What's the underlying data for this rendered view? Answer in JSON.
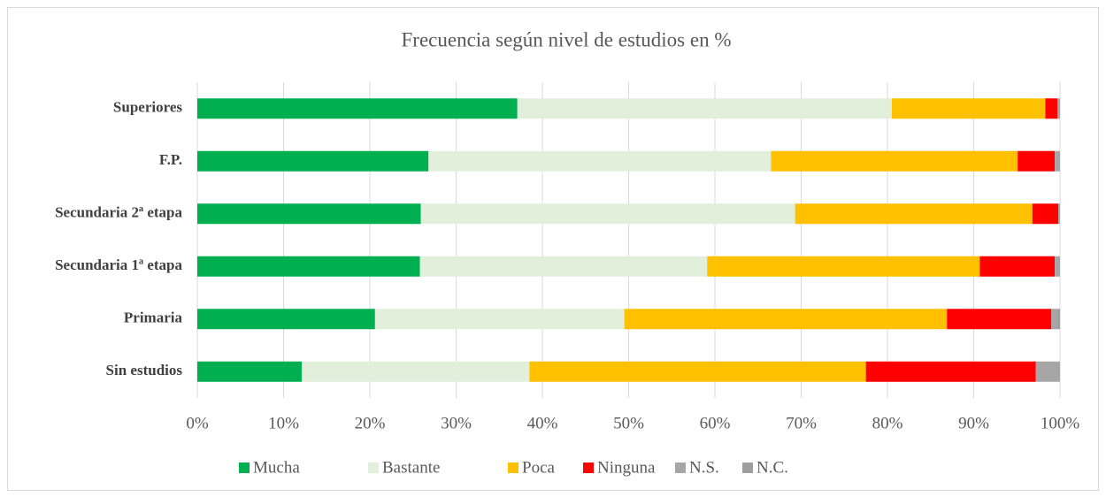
{
  "chart_data": {
    "type": "bar",
    "orientation": "horizontal",
    "stacked": true,
    "title": "Frecuencia según nivel de estudios en %",
    "categories": [
      "Superiores",
      "F.P.",
      "Secundaria 2ª etapa",
      "Secundaria 1ª etapa",
      "Primaria",
      "Sin estudios"
    ],
    "series": [
      {
        "name": "Mucha",
        "color": "#00b050",
        "values": [
          37.1,
          26.8,
          25.9,
          25.8,
          20.6,
          12.1
        ]
      },
      {
        "name": "Bastante",
        "color": "#e2efda",
        "values": [
          43.4,
          39.7,
          43.4,
          33.3,
          28.9,
          26.4
        ]
      },
      {
        "name": "Poca",
        "color": "#ffc000",
        "values": [
          17.8,
          28.6,
          27.5,
          31.6,
          37.4,
          39.0
        ]
      },
      {
        "name": "Ninguna",
        "color": "#ff0000",
        "values": [
          1.4,
          4.3,
          3.0,
          8.7,
          12.1,
          19.7
        ]
      },
      {
        "name": "N.S.",
        "color": "#a6a6a6",
        "values": [
          0.3,
          0.6,
          0.2,
          0.6,
          0.7,
          2.8
        ]
      },
      {
        "name": "N.C.",
        "color": "#9e9e9e",
        "values": [
          0,
          0,
          0,
          0,
          0.3,
          0
        ]
      }
    ],
    "xlim": [
      0,
      100
    ],
    "xticks": [
      {
        "value": 0,
        "label": "0%"
      },
      {
        "value": 10,
        "label": "10%"
      },
      {
        "value": 20,
        "label": "20%"
      },
      {
        "value": 30,
        "label": "30%"
      },
      {
        "value": 40,
        "label": "40%"
      },
      {
        "value": 50,
        "label": "50%"
      },
      {
        "value": 60,
        "label": "60%"
      },
      {
        "value": 70,
        "label": "70%"
      },
      {
        "value": 80,
        "label": "80%"
      },
      {
        "value": 90,
        "label": "90%"
      },
      {
        "value": 100,
        "label": "100%"
      }
    ],
    "grid": true,
    "legend": "bottom"
  }
}
